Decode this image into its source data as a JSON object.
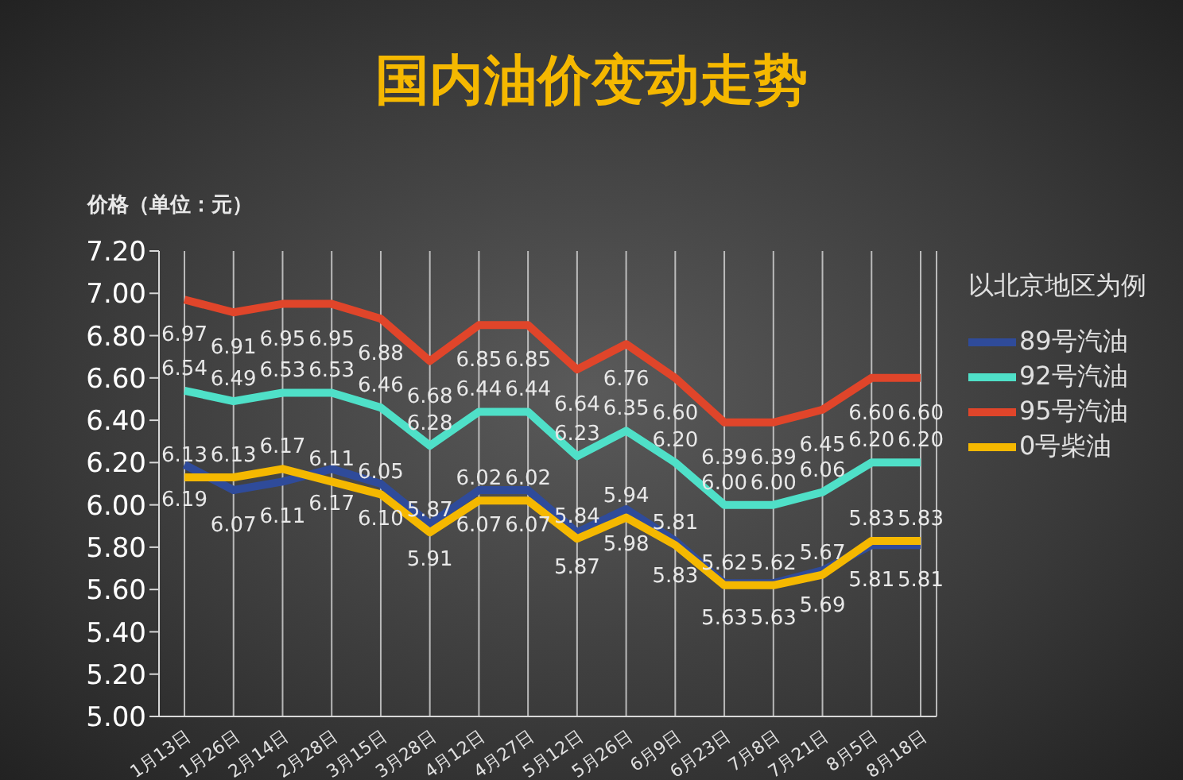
{
  "chart_data": {
    "type": "line",
    "title": "国内油价变动走势",
    "ylabel": "价格（单位：元）",
    "legend_title": "以北京地区为例",
    "categories": [
      "1月13日",
      "1月26日",
      "2月14日",
      "2月28日",
      "3月15日",
      "3月28日",
      "4月12日",
      "4月27日",
      "5月12日",
      "5月26日",
      "6月9日",
      "6月23日",
      "7月8日",
      "7月21日",
      "8月5日",
      "8月18日"
    ],
    "series": [
      {
        "name": "89号汽油",
        "color": "#2f4b9a",
        "values": [
          6.19,
          6.07,
          6.11,
          6.17,
          6.1,
          5.91,
          6.07,
          6.07,
          5.87,
          5.98,
          5.83,
          5.63,
          5.63,
          5.69,
          5.81,
          5.81
        ],
        "value_labels": [
          "6.19",
          "6.07",
          "6.11",
          "6.17",
          "6.10",
          "5.91",
          "6.07",
          "6.07",
          "5.87",
          "5.98",
          "5.83",
          "5.63",
          "5.63",
          "5.69",
          "5.81",
          "5.81"
        ]
      },
      {
        "name": "92号汽油",
        "color": "#4fe0c8",
        "values": [
          6.54,
          6.49,
          6.53,
          6.53,
          6.46,
          6.28,
          6.44,
          6.44,
          6.23,
          6.35,
          6.2,
          6.0,
          6.0,
          6.06,
          6.2,
          6.2
        ],
        "value_labels": [
          "6.54",
          "6.49",
          "6.53",
          "6.53",
          "6.46",
          "6.28",
          "6.44",
          "6.44",
          "6.23",
          "6.35",
          "6.20",
          "6.00",
          "6.00",
          "6.06",
          "6.20",
          "6.20"
        ]
      },
      {
        "name": "95号汽油",
        "color": "#e0452a",
        "values": [
          6.97,
          6.91,
          6.95,
          6.95,
          6.88,
          6.68,
          6.85,
          6.85,
          6.64,
          6.76,
          6.6,
          6.39,
          6.39,
          6.45,
          6.6,
          6.6
        ],
        "value_labels": [
          "6.97",
          "6.91",
          "6.95",
          "6.95",
          "6.88",
          "6.68",
          "6.85",
          "6.85",
          "6.64",
          "6.76",
          "6.60",
          "6.39",
          "6.39",
          "6.45",
          "6.60",
          "6.60"
        ]
      },
      {
        "name": "0号柴油",
        "color": "#f5b800",
        "values": [
          6.13,
          6.13,
          6.17,
          6.11,
          6.05,
          5.87,
          6.02,
          6.02,
          5.84,
          5.94,
          5.81,
          5.62,
          5.62,
          5.67,
          5.83,
          5.83
        ],
        "value_labels": [
          "6.13",
          "6.13",
          "6.17",
          "6.11",
          "6.05",
          "5.87",
          "6.02",
          "6.02",
          "5.84",
          "5.94",
          "5.81",
          "5.62",
          "5.62",
          "5.67",
          "5.83",
          "5.83"
        ]
      }
    ],
    "ylim": [
      5.0,
      7.2
    ],
    "yticks": [
      {
        "value": 5.0,
        "label": "5.00"
      },
      {
        "value": 5.2,
        "label": "5.20"
      },
      {
        "value": 5.4,
        "label": "5.40"
      },
      {
        "value": 5.6,
        "label": "5.60"
      },
      {
        "value": 5.8,
        "label": "5.80"
      },
      {
        "value": 6.0,
        "label": "6.00"
      },
      {
        "value": 6.2,
        "label": "6.20"
      },
      {
        "value": 6.4,
        "label": "6.40"
      },
      {
        "value": 6.6,
        "label": "6.60"
      },
      {
        "value": 6.8,
        "label": "6.80"
      },
      {
        "value": 7.0,
        "label": "7.00"
      },
      {
        "value": 7.2,
        "label": "7.20"
      }
    ],
    "grid": "x",
    "legend": "right",
    "marker": "none",
    "line_style": "solid"
  }
}
